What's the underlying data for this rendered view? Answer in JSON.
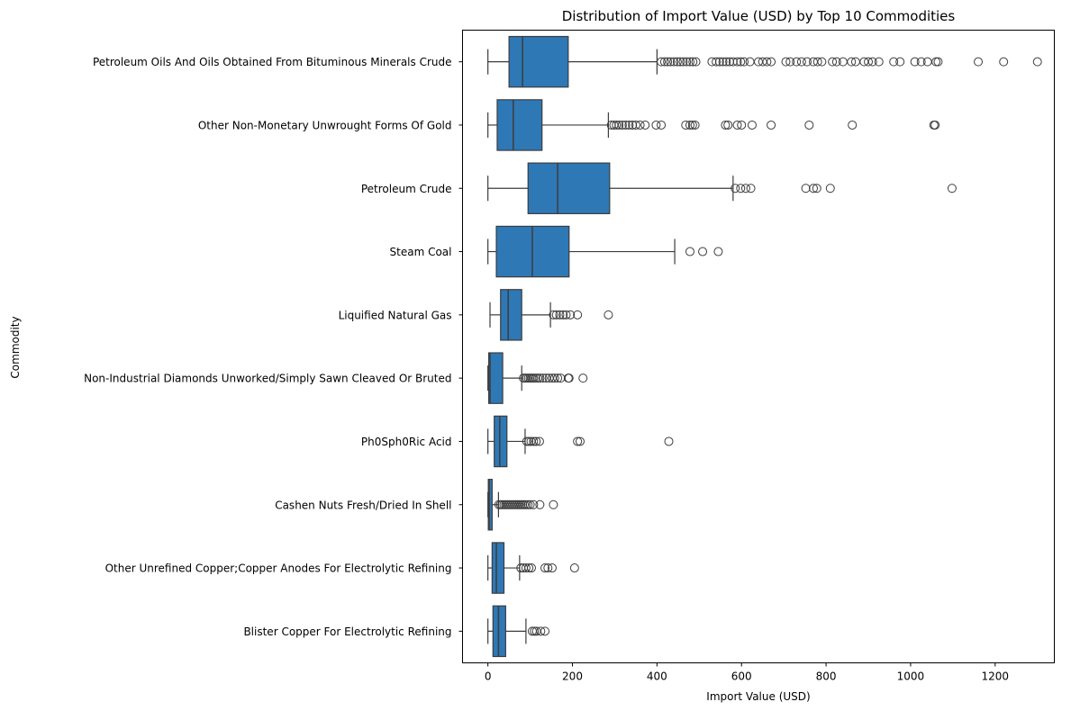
{
  "chart_data": {
    "type": "box",
    "orientation": "horizontal",
    "title": "Distribution of Import Value (USD) by Top 10 Commodities",
    "xlabel": "Import Value (USD)",
    "ylabel": "Commodity",
    "xlim": [
      -60,
      1340
    ],
    "xticks": [
      0,
      200,
      400,
      600,
      800,
      1000,
      1200
    ],
    "grid": false,
    "box_color": "#2e78b5",
    "line_color": "#3d3d3d",
    "categories": [
      {
        "label": "Petroleum Oils And Oils Obtained From Bituminous Minerals Crude",
        "whisker_low": 0,
        "q1": 50,
        "median": 82,
        "q3": 190,
        "whisker_high": 400,
        "outliers": [
          410,
          418,
          425,
          432,
          440,
          448,
          455,
          462,
          470,
          478,
          485,
          492,
          530,
          540,
          548,
          556,
          564,
          572,
          580,
          590,
          598,
          606,
          620,
          640,
          650,
          660,
          670,
          705,
          715,
          730,
          742,
          755,
          770,
          780,
          790,
          815,
          825,
          840,
          860,
          870,
          890,
          900,
          910,
          925,
          960,
          975,
          1010,
          1025,
          1040,
          1060,
          1065,
          1160,
          1220,
          1300
        ]
      },
      {
        "label": "Other Non-Monetary Unwrought Forms Of Gold",
        "whisker_low": 0,
        "q1": 22,
        "median": 60,
        "q3": 128,
        "whisker_high": 285,
        "outliers": [
          292,
          298,
          304,
          310,
          318,
          326,
          334,
          342,
          350,
          360,
          372,
          398,
          410,
          468,
          478,
          484,
          490,
          562,
          568,
          590,
          600,
          625,
          670,
          760,
          862,
          1055,
          1058
        ]
      },
      {
        "label": "Petroleum Crude",
        "whisker_low": 0,
        "q1": 95,
        "median": 165,
        "q3": 288,
        "whisker_high": 580,
        "outliers": [
          585,
          598,
          610,
          622,
          752,
          770,
          778,
          810,
          1098
        ]
      },
      {
        "label": "Steam Coal",
        "whisker_low": 0,
        "q1": 20,
        "median": 105,
        "q3": 192,
        "whisker_high": 442,
        "outliers": [
          478,
          508,
          545
        ]
      },
      {
        "label": "Liquified Natural Gas",
        "whisker_low": 5,
        "q1": 30,
        "median": 48,
        "q3": 80,
        "whisker_high": 148,
        "outliers": [
          155,
          162,
          170,
          178,
          185,
          195,
          212,
          285
        ]
      },
      {
        "label": "Non-Industrial Diamonds Unworked/Simply Sawn Cleaved Or Bruted",
        "whisker_low": 0,
        "q1": 2,
        "median": 5,
        "q3": 35,
        "whisker_high": 80,
        "outliers": [
          84,
          88,
          92,
          96,
          100,
          104,
          108,
          113,
          118,
          123,
          130,
          138,
          145,
          152,
          158,
          165,
          172,
          190,
          192,
          225
        ]
      },
      {
        "label": "Ph0Sph0Ric Acid",
        "whisker_low": 0,
        "q1": 15,
        "median": 28,
        "q3": 45,
        "whisker_high": 88,
        "outliers": [
          92,
          97,
          102,
          108,
          114,
          122,
          212,
          218,
          428
        ]
      },
      {
        "label": "Cashen Nuts Fresh/Dried In Shell",
        "whisker_low": 0,
        "q1": 1,
        "median": 3,
        "q3": 10,
        "whisker_high": 25,
        "outliers": [
          26,
          30,
          34,
          38,
          42,
          46,
          50,
          54,
          58,
          62,
          66,
          70,
          74,
          78,
          82,
          86,
          90,
          95,
          100,
          108,
          123,
          155
        ]
      },
      {
        "label": "Other Unrefined Copper;Copper Anodes For Electrolytic Refining",
        "whisker_low": 0,
        "q1": 10,
        "median": 20,
        "q3": 38,
        "whisker_high": 75,
        "outliers": [
          78,
          84,
          90,
          97,
          103,
          135,
          142,
          152,
          205
        ]
      },
      {
        "label": "Blister Copper For Electrolytic Refining",
        "whisker_low": 0,
        "q1": 12,
        "median": 25,
        "q3": 42,
        "whisker_high": 90,
        "outliers": [
          105,
          110,
          115,
          125,
          135
        ]
      }
    ]
  }
}
